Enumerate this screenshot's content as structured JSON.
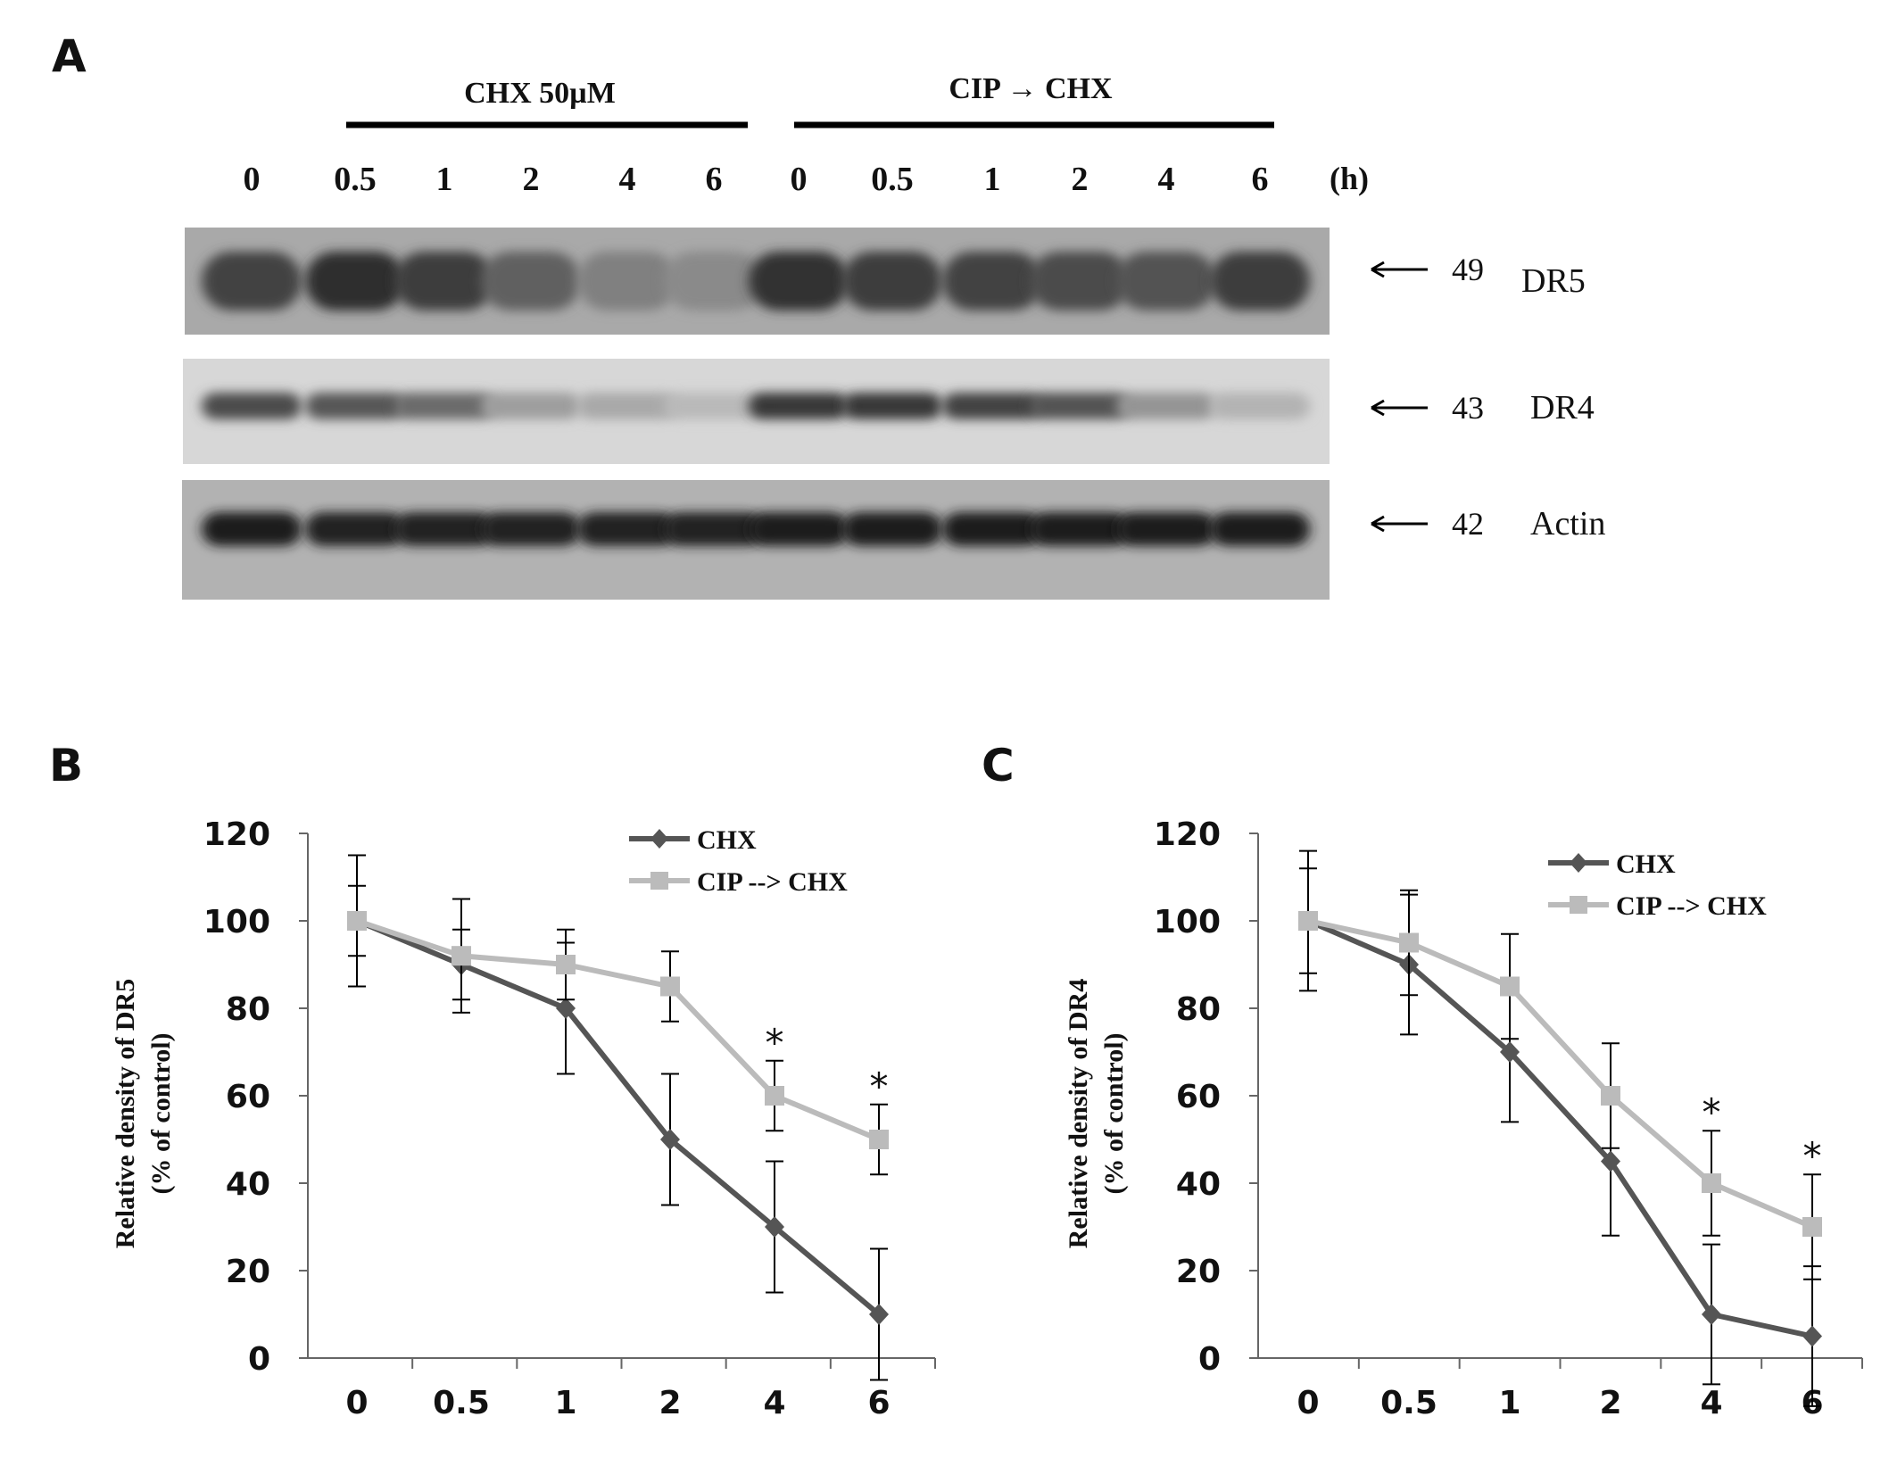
{
  "panel_a": {
    "letter": "A",
    "group_labels": [
      "CHX 50µM",
      "CIP → CHX"
    ],
    "lanes": [
      "0",
      "0.5",
      "1",
      "2",
      "4",
      "6",
      "0",
      "0.5",
      "1",
      "2",
      "4",
      "6"
    ],
    "unit": "(h)",
    "blots": [
      {
        "protein": "DR5",
        "marker": "49",
        "lane_intensity": [
          0.8,
          0.9,
          0.82,
          0.65,
          0.5,
          0.45,
          0.88,
          0.82,
          0.8,
          0.75,
          0.72,
          0.82
        ]
      },
      {
        "protein": "DR4",
        "marker": "43",
        "lane_intensity": [
          0.75,
          0.7,
          0.6,
          0.35,
          0.3,
          0.22,
          0.85,
          0.85,
          0.8,
          0.72,
          0.4,
          0.25
        ]
      },
      {
        "protein": "Actin",
        "marker": "42",
        "lane_intensity": [
          0.98,
          0.96,
          0.96,
          0.96,
          0.96,
          0.96,
          0.98,
          0.97,
          0.97,
          0.97,
          0.97,
          0.98
        ]
      }
    ]
  },
  "chart_data": [
    {
      "panel": "B",
      "type": "line",
      "categories": [
        "0",
        "0.5",
        "1",
        "2",
        "4",
        "6"
      ],
      "ylabel": [
        "Relative density of DR5",
        "(% of control)"
      ],
      "ylim": [
        0,
        120
      ],
      "yticks": [
        "0",
        "20",
        "40",
        "60",
        "80",
        "100",
        "120"
      ],
      "series": [
        {
          "name": "CHX",
          "color": "#555555",
          "marker": "diamond",
          "values": [
            100,
            90,
            80,
            50,
            30,
            10
          ],
          "errors": [
            8,
            8,
            15,
            15,
            15,
            15
          ]
        },
        {
          "name": "CIP --> CHX",
          "color": "#bbbbbb",
          "marker": "square",
          "values": [
            100,
            92,
            90,
            85,
            60,
            50
          ],
          "errors": [
            15,
            13,
            8,
            8,
            8,
            8
          ]
        }
      ],
      "annotations": [
        {
          "category": "4",
          "text": "*"
        },
        {
          "category": "6",
          "text": "*"
        }
      ],
      "legend": "top-right"
    },
    {
      "panel": "C",
      "type": "line",
      "categories": [
        "0",
        "0.5",
        "1",
        "2",
        "4",
        "6"
      ],
      "ylabel": [
        "Relative density of DR4",
        "(% of control)"
      ],
      "ylim": [
        0,
        120
      ],
      "yticks": [
        "0",
        "20",
        "40",
        "60",
        "80",
        "100",
        "120"
      ],
      "series": [
        {
          "name": "CHX",
          "color": "#555555",
          "marker": "diamond",
          "values": [
            100,
            90,
            70,
            45,
            10,
            5
          ],
          "errors": [
            12,
            16,
            16,
            17,
            16,
            16
          ]
        },
        {
          "name": "CIP --> CHX",
          "color": "#bbbbbb",
          "marker": "square",
          "values": [
            100,
            95,
            85,
            60,
            40,
            30
          ],
          "errors": [
            16,
            12,
            12,
            12,
            12,
            12
          ]
        }
      ],
      "annotations": [
        {
          "category": "4",
          "text": "*"
        },
        {
          "category": "6",
          "text": "*"
        }
      ],
      "legend": "top-right"
    }
  ]
}
